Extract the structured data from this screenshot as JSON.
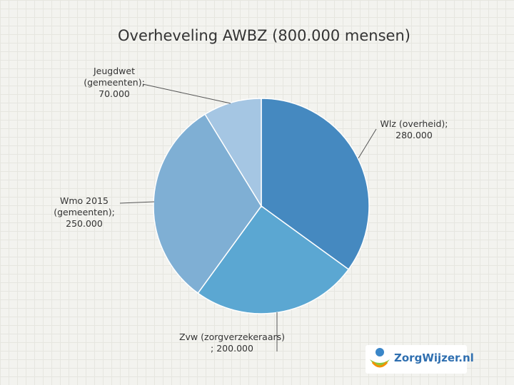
{
  "chart_data": {
    "type": "pie",
    "title": "Overheveling AWBZ (800.000 mensen)",
    "categories": [
      "Wlz (overheid);",
      "Zvw (zorgverzekeraars)",
      "Wmo 2015 (gemeenten);",
      "Jeugdwet (gemeenten);"
    ],
    "values": [
      280000,
      200000,
      250000,
      70000
    ],
    "value_labels": [
      "280.000",
      "; 200.000",
      "250.000",
      "70.000"
    ],
    "colors": [
      "#4589c0",
      "#5ba7d2",
      "#7fafd4",
      "#a5c6e3"
    ]
  },
  "logo_text": "ZorgWijzer.nl"
}
